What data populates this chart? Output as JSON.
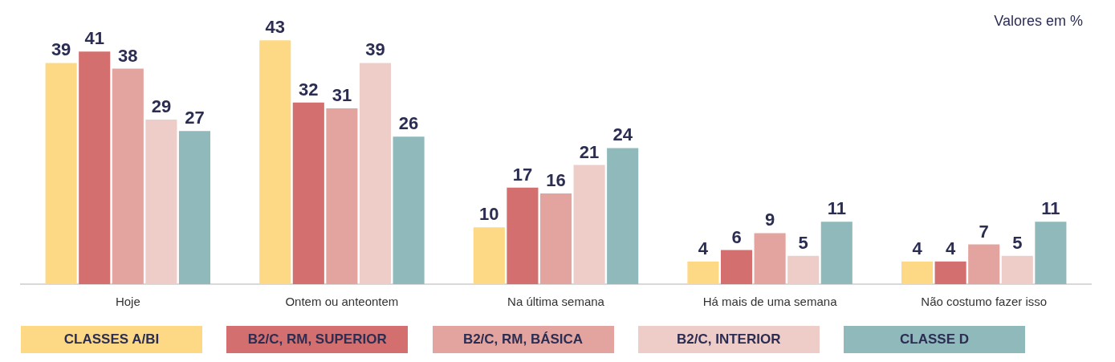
{
  "chart_data": {
    "type": "bar",
    "categories": [
      "Hoje",
      "Ontem ou anteontem",
      "Na última semana",
      "Há mais de uma semana",
      "Não costumo fazer isso"
    ],
    "series": [
      {
        "name": "CLASSES A/BI",
        "color": "#fdd985",
        "values": [
          39,
          43,
          10,
          4,
          4
        ]
      },
      {
        "name": "B2/C, RM, SUPERIOR",
        "color": "#d46f6f",
        "values": [
          41,
          32,
          17,
          6,
          4
        ]
      },
      {
        "name": "B2/C, RM, BÁSICA",
        "color": "#e3a39e",
        "values": [
          38,
          31,
          16,
          9,
          7
        ]
      },
      {
        "name": "B2/C, INTERIOR",
        "color": "#eecdc9",
        "values": [
          29,
          39,
          21,
          5,
          5
        ]
      },
      {
        "name": "CLASSE D",
        "color": "#8fb9bb",
        "values": [
          27,
          26,
          24,
          11,
          11
        ]
      }
    ],
    "annotations": [
      "Valores em %"
    ],
    "data_labels": true,
    "legend": "bottom",
    "grid": false,
    "tick_labels": "x"
  }
}
